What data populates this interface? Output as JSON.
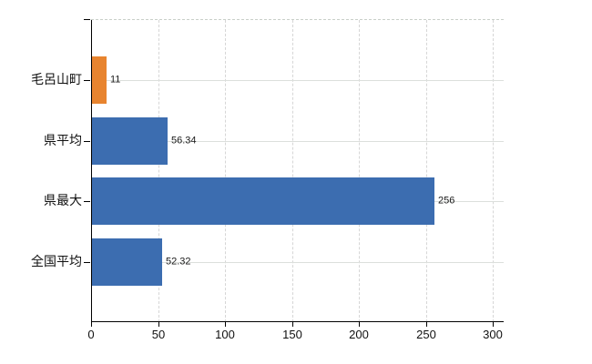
{
  "chart_data": {
    "type": "bar",
    "orientation": "horizontal",
    "title": "",
    "xlabel": "",
    "ylabel": "",
    "categories": [
      "毛呂山町",
      "県平均",
      "県最大",
      "全国平均"
    ],
    "values": [
      11,
      56.34,
      256,
      52.32
    ],
    "value_labels": [
      "11",
      "56.34",
      "256",
      "52.32"
    ],
    "bar_colors": [
      "#e8842f",
      "#3c6db0",
      "#3c6db0",
      "#3c6db0"
    ],
    "xlim": [
      0,
      300
    ],
    "x_ticks": [
      0,
      50,
      100,
      150,
      200,
      250,
      300
    ],
    "x_tick_labels": [
      "0",
      "50",
      "100",
      "150",
      "200",
      "250",
      "300"
    ],
    "grid": "both",
    "legend_position": "none",
    "background": "#ffffff"
  },
  "colors": {
    "bar_blue": "#3c6db0",
    "bar_orange": "#e8842f",
    "gridline": "#d9d9d9",
    "axis": "#000000",
    "text": "#1a1a1a"
  }
}
